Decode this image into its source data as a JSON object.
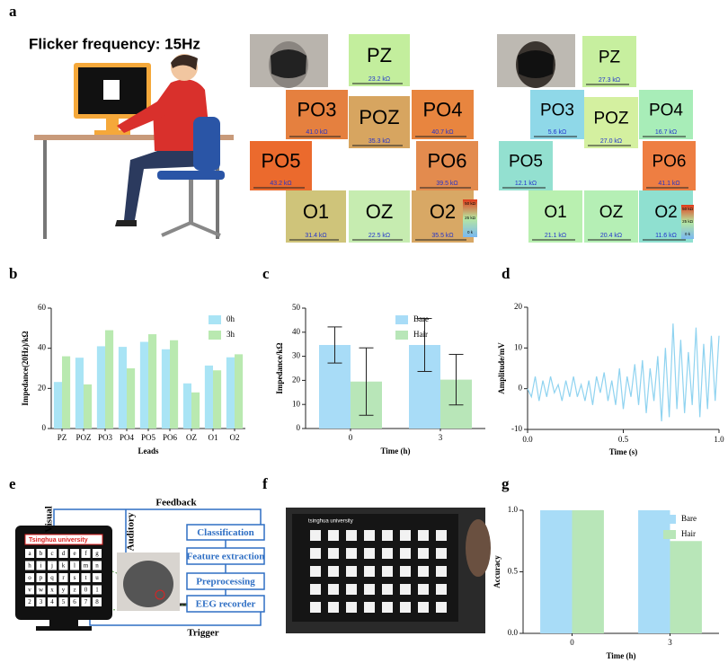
{
  "panel_labels": [
    "a",
    "b",
    "c",
    "d",
    "e",
    "f",
    "g"
  ],
  "panel_a": {
    "title": "Flicker frequency: 15Hz",
    "maps": [
      {
        "electrodes": [
          {
            "label": "PZ",
            "impedance": "23.2 kΩ",
            "color": "#c3ee9d"
          },
          {
            "label": "PO3",
            "impedance": "41.0 kΩ",
            "color": "#e5803f"
          },
          {
            "label": "POZ",
            "impedance": "35.3 kΩ",
            "color": "#d7a560"
          },
          {
            "label": "PO4",
            "impedance": "40.7 kΩ",
            "color": "#e8853f"
          },
          {
            "label": "PO5",
            "impedance": "43.2 kΩ",
            "color": "#eb6a2d"
          },
          {
            "label": "PO6",
            "impedance": "39.5 kΩ",
            "color": "#e38b4e"
          },
          {
            "label": "O1",
            "impedance": "31.4 kΩ",
            "color": "#cfc47a"
          },
          {
            "label": "OZ",
            "impedance": "22.5 kΩ",
            "color": "#c6ecb0"
          },
          {
            "label": "O2",
            "impedance": "35.5 kΩ",
            "color": "#d8a865"
          }
        ],
        "scale_labels": [
          "50 kΩ",
          "25 kΩ",
          "0 k"
        ]
      },
      {
        "electrodes": [
          {
            "label": "PZ",
            "impedance": "27.3 kΩ",
            "color": "#c7ef9f"
          },
          {
            "label": "PO3",
            "impedance": "5.6 kΩ",
            "color": "#8fd8e8"
          },
          {
            "label": "POZ",
            "impedance": "27.0 kΩ",
            "color": "#d4f0a0"
          },
          {
            "label": "PO4",
            "impedance": "16.7 kΩ",
            "color": "#a8edb8"
          },
          {
            "label": "PO5",
            "impedance": "12.1 kΩ",
            "color": "#93e0d0"
          },
          {
            "label": "PO6",
            "impedance": "41.1 kΩ",
            "color": "#ee7e42"
          },
          {
            "label": "O1",
            "impedance": "21.1 kΩ",
            "color": "#b9f0b0"
          },
          {
            "label": "OZ",
            "impedance": "20.4 kΩ",
            "color": "#b5efb5"
          },
          {
            "label": "O2",
            "impedance": "11.6 kΩ",
            "color": "#8fe0d0"
          }
        ],
        "scale_labels": [
          "50 kΩ",
          "25 kΩ",
          "0 k"
        ]
      }
    ]
  },
  "chart_data": [
    {
      "type": "bar",
      "y_label": "Impedance(20Hz)/kΩ",
      "x_label": "Leads",
      "categories": [
        "PZ",
        "POZ",
        "PO3",
        "PO4",
        "PO5",
        "PO6",
        "OZ",
        "O1",
        "O2"
      ],
      "series": [
        {
          "name": "0h",
          "color": "#a9e4f5",
          "values": [
            23.2,
            35.3,
            41.0,
            40.7,
            43.2,
            39.5,
            22.5,
            31.4,
            35.5
          ]
        },
        {
          "name": "3h",
          "color": "#b9e9b0",
          "values": [
            36,
            22,
            49,
            30,
            47,
            44,
            18,
            29,
            37
          ]
        }
      ],
      "ylim": [
        0,
        60
      ],
      "yticks": [
        0,
        20,
        40,
        60
      ],
      "legend": "upper right",
      "grid": false
    },
    {
      "type": "bar",
      "y_label": "Impedance/kΩ",
      "x_label": "Time (h)",
      "categories": [
        "0",
        "3"
      ],
      "series": [
        {
          "name": "Bare",
          "color": "#a8dcf7",
          "values": [
            34.7,
            34.7
          ],
          "errors": [
            7.5,
            11
          ]
        },
        {
          "name": "Hair",
          "color": "#b8e6b8",
          "values": [
            19.5,
            20.3
          ],
          "errors": [
            14,
            10.5
          ]
        }
      ],
      "ylim": [
        0,
        50
      ],
      "yticks": [
        0,
        10,
        20,
        30,
        40,
        50
      ],
      "legend": "upper right",
      "grid": false
    },
    {
      "type": "line",
      "y_label": "Amplitude/mV",
      "x_label": "Time (s)",
      "x": [
        0,
        0.02,
        0.04,
        0.06,
        0.08,
        0.1,
        0.12,
        0.14,
        0.16,
        0.18,
        0.2,
        0.22,
        0.24,
        0.26,
        0.28,
        0.3,
        0.32,
        0.34,
        0.36,
        0.38,
        0.4,
        0.42,
        0.44,
        0.46,
        0.48,
        0.5,
        0.52,
        0.54,
        0.56,
        0.58,
        0.6,
        0.62,
        0.64,
        0.66,
        0.68,
        0.7,
        0.72,
        0.74,
        0.76,
        0.78,
        0.8,
        0.82,
        0.84,
        0.86,
        0.88,
        0.9,
        0.92,
        0.94,
        0.96,
        0.98,
        1
      ],
      "series": [
        {
          "color": "#8fd3f0",
          "values": [
            0,
            -2,
            3,
            -3,
            2,
            -2,
            3,
            -1,
            1,
            -3,
            2,
            -2,
            3,
            -2,
            1,
            -3,
            2,
            -4,
            3,
            -1,
            4,
            -3,
            2,
            -4,
            5,
            -5,
            3,
            -2,
            6,
            -4,
            7,
            -6,
            5,
            -3,
            8,
            -8,
            10,
            -7,
            16,
            -5,
            12,
            -6,
            9,
            -4,
            15,
            -7,
            11,
            -5,
            13,
            -3,
            13
          ]
        }
      ],
      "xlim": [
        0,
        1
      ],
      "xticks": [
        {
          "value": 0,
          "label": "0.0"
        },
        {
          "value": 0.5,
          "label": "0.5"
        },
        {
          "value": 1,
          "label": "1.0"
        }
      ],
      "ylim": [
        -10,
        20
      ],
      "yticks": [
        -10,
        0,
        10,
        20
      ],
      "grid": false
    },
    {
      "type": "bar",
      "y_label": "Accuracy",
      "x_label": "Time (h)",
      "categories": [
        "0",
        "3"
      ],
      "series": [
        {
          "name": "Bare",
          "color": "#a8dcf7",
          "values": [
            1.0,
            1.0
          ]
        },
        {
          "name": "Hair",
          "color": "#b8e6b8",
          "values": [
            1.0,
            0.75
          ]
        }
      ],
      "ylim": [
        0,
        1
      ],
      "yticks": [
        {
          "value": 0,
          "label": "0.0"
        },
        {
          "value": 0.5,
          "label": "0.5"
        },
        {
          "value": 1,
          "label": "1.0"
        }
      ],
      "legend": "upper right",
      "grid": false
    }
  ],
  "panel_e": {
    "feedback": "Feedback",
    "visual": "Visual",
    "auditory": "Auditory",
    "trigger": "Trigger",
    "steps": [
      "Classification",
      "Feature extraction",
      "Preprocessing",
      "EEG recorder"
    ],
    "keyboard_title": "Tsinghua university",
    "keyboard_keys": [
      [
        "a",
        "b",
        "c",
        "d",
        "e",
        "f",
        "g"
      ],
      [
        "h",
        "i",
        "j",
        "k",
        "l",
        "m",
        "n"
      ],
      [
        "o",
        "p",
        "q",
        "r",
        "s",
        "t",
        "u"
      ],
      [
        "v",
        "w",
        "x",
        "y",
        "z",
        "0",
        "1"
      ],
      [
        "2",
        "3",
        "4",
        "5",
        "6",
        "7",
        "8"
      ]
    ]
  },
  "panel_f": {
    "screen_text": "tsinghua university"
  }
}
